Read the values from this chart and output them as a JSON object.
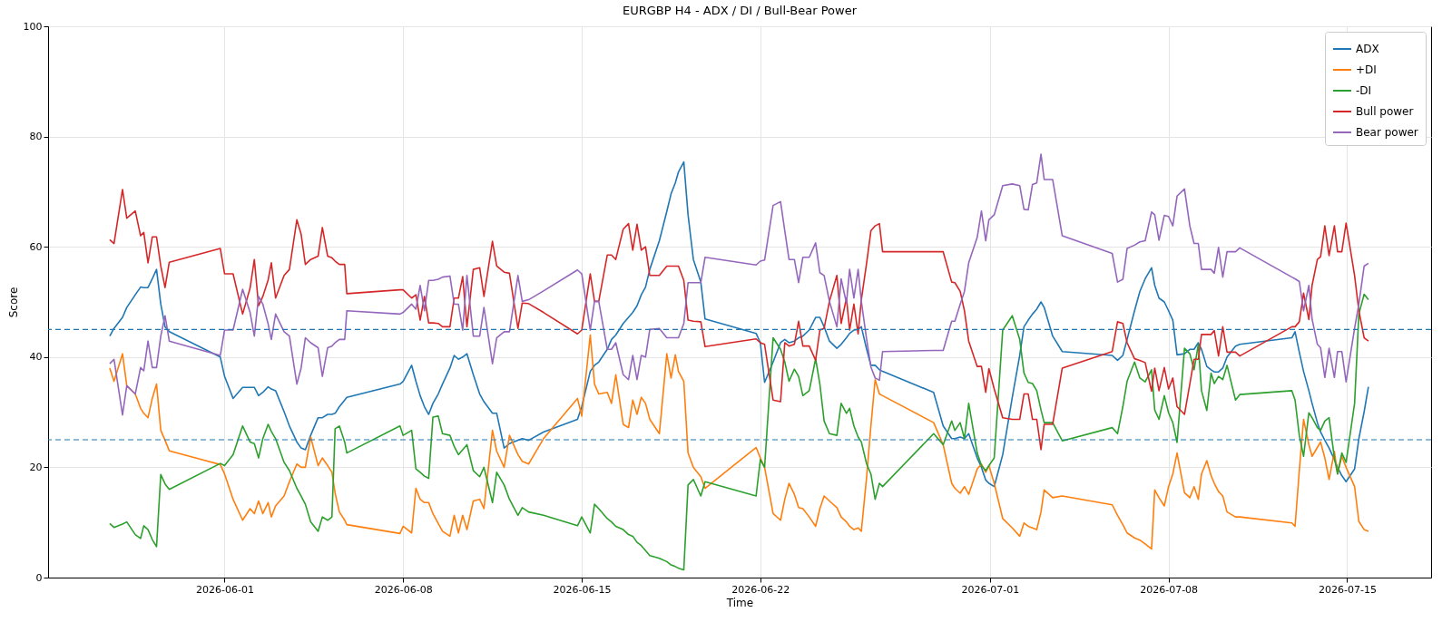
{
  "chart_data": {
    "type": "line",
    "title": "EURGBP H4 - ADX / DI / Bull-Bear Power",
    "xlabel": "Time",
    "ylabel": "Score",
    "x": [
      "2026-05-27T12:00",
      "2026-05-27T16:00",
      "2026-05-28T00:00",
      "2026-05-28T04:00",
      "2026-05-28T12:00",
      "2026-05-28T17:00",
      "2026-05-28T20:00",
      "2026-05-29T00:00",
      "2026-05-29T04:00",
      "2026-05-29T08:00",
      "2026-05-29T12:00",
      "2026-05-29T16:00",
      "2026-05-29T20:00",
      "2026-05-31T20:00",
      "2026-06-01T00:00",
      "2026-06-01T08:00",
      "2026-06-01T17:00",
      "2026-06-02T00:00",
      "2026-06-02T04:00",
      "2026-06-02T08:00",
      "2026-06-02T12:00",
      "2026-06-02T17:00",
      "2026-06-02T20:00",
      "2026-06-03T00:00",
      "2026-06-03T08:00",
      "2026-06-03T13:00",
      "2026-06-03T20:00",
      "2026-06-04T00:00",
      "2026-06-04T04:00",
      "2026-06-04T09:00",
      "2026-06-04T16:00",
      "2026-06-04T20:00",
      "2026-06-05T01:00",
      "2026-06-05T05:00",
      "2026-06-05T08:00",
      "2026-06-05T12:00",
      "2026-06-05T17:00",
      "2026-06-05T19:00",
      "2026-06-07T21:00",
      "2026-06-08T00:00",
      "2026-06-08T08:00",
      "2026-06-08T12:00",
      "2026-06-08T16:00",
      "2026-06-08T20:00",
      "2026-06-09T00:00",
      "2026-06-09T04:00",
      "2026-06-09T09:00",
      "2026-06-09T13:00",
      "2026-06-09T20:00",
      "2026-06-10T00:00",
      "2026-06-10T04:00",
      "2026-06-10T08:00",
      "2026-06-10T12:00",
      "2026-06-10T18:00",
      "2026-06-11T00:00",
      "2026-06-11T04:00",
      "2026-06-11T12:00",
      "2026-06-11T16:00",
      "2026-06-11T23:00",
      "2026-06-12T04:00",
      "2026-06-12T12:00",
      "2026-06-12T16:00",
      "2026-06-12T22:00",
      "2026-06-13T12:00",
      "2026-06-14T20:00",
      "2026-06-15T00:00",
      "2026-06-15T08:00",
      "2026-06-15T12:00",
      "2026-06-15T16:00",
      "2026-06-16T00:00",
      "2026-06-16T04:00",
      "2026-06-16T08:00",
      "2026-06-16T15:00",
      "2026-06-16T20:00",
      "2026-06-17T00:00",
      "2026-06-17T04:00",
      "2026-06-17T08:00",
      "2026-06-17T12:00",
      "2026-06-17T16:00",
      "2026-06-18T01:00",
      "2026-06-18T08:00",
      "2026-06-18T12:00",
      "2026-06-18T16:00",
      "2026-06-18T19:00",
      "2026-06-19T00:00",
      "2026-06-19T04:00",
      "2026-06-19T09:00",
      "2026-06-19T16:00",
      "2026-06-19T20:00",
      "2026-06-21T20:00",
      "2026-06-22T00:00",
      "2026-06-22T04:00",
      "2026-06-22T12:00",
      "2026-06-22T19:00",
      "2026-06-22T23:00",
      "2026-06-23T03:00",
      "2026-06-23T08:00",
      "2026-06-23T12:00",
      "2026-06-23T16:00",
      "2026-06-23T22:00",
      "2026-06-24T04:00",
      "2026-06-24T08:00",
      "2026-06-24T12:00",
      "2026-06-24T17:00",
      "2026-06-25T00:00",
      "2026-06-25T04:00",
      "2026-06-25T09:00",
      "2026-06-25T12:00",
      "2026-06-25T16:00",
      "2026-06-25T20:00",
      "2026-06-25T23:00",
      "2026-06-26T04:00",
      "2026-06-26T08:00",
      "2026-06-26T12:00",
      "2026-06-26T16:00",
      "2026-06-26T19:00",
      "2026-06-28T19:00",
      "2026-06-29T04:00",
      "2026-06-29T12:00",
      "2026-06-29T15:00",
      "2026-06-29T20:00",
      "2026-06-30T00:00",
      "2026-06-30T04:00",
      "2026-06-30T12:00",
      "2026-06-30T16:00",
      "2026-06-30T20:00",
      "2026-06-30T23:00",
      "2026-07-01T04:00",
      "2026-07-01T12:00",
      "2026-07-01T21:00",
      "2026-07-02T04:00",
      "2026-07-02T08:00",
      "2026-07-02T12:00",
      "2026-07-02T16:00",
      "2026-07-02T20:00",
      "2026-07-03T00:00",
      "2026-07-03T03:00",
      "2026-07-03T11:00",
      "2026-07-03T20:00",
      "2026-07-05T19:00",
      "2026-07-06T00:00",
      "2026-07-06T05:00",
      "2026-07-06T09:00",
      "2026-07-06T16:00",
      "2026-07-06T21:00",
      "2026-07-07T02:00",
      "2026-07-07T08:00",
      "2026-07-07T11:00",
      "2026-07-07T15:00",
      "2026-07-07T20:00",
      "2026-07-08T00:00",
      "2026-07-08T04:00",
      "2026-07-08T08:00",
      "2026-07-08T15:00",
      "2026-07-08T20:00",
      "2026-07-09T00:00",
      "2026-07-09T04:00",
      "2026-07-09T07:00",
      "2026-07-09T12:00",
      "2026-07-09T16:00",
      "2026-07-09T19:00",
      "2026-07-09T23:00",
      "2026-07-10T03:00",
      "2026-07-10T07:00",
      "2026-07-10T15:00",
      "2026-07-10T19:00",
      "2026-07-12T20:00",
      "2026-07-12T23:00",
      "2026-07-13T03:00",
      "2026-07-13T07:00",
      "2026-07-13T12:00",
      "2026-07-13T15:00",
      "2026-07-13T20:00",
      "2026-07-13T23:00",
      "2026-07-14T03:00",
      "2026-07-14T07:00",
      "2026-07-14T12:00",
      "2026-07-14T15:00",
      "2026-07-14T19:00",
      "2026-07-14T23:00",
      "2026-07-15T07:00",
      "2026-07-15T11:00",
      "2026-07-15T16:00",
      "2026-07-15T20:00"
    ],
    "series": [
      {
        "name": "ADX",
        "color": "#1f77b4",
        "values": [
          43.8,
          45.2,
          47.2,
          49.0,
          51.3,
          52.7,
          52.6,
          52.6,
          54.2,
          55.9,
          49.6,
          45.5,
          44.6,
          40.0,
          36.5,
          32.5,
          34.5,
          34.5,
          34.5,
          33.0,
          33.6,
          34.6,
          34.2,
          33.9,
          30.1,
          27.5,
          24.6,
          23.5,
          23.2,
          25.8,
          29.0,
          29.0,
          29.6,
          29.6,
          29.8,
          31.0,
          32.2,
          32.7,
          35.1,
          35.6,
          38.5,
          35.6,
          33.0,
          31.0,
          29.6,
          31.6,
          33.3,
          35.1,
          38.0,
          40.3,
          39.6,
          40.0,
          40.6,
          36.8,
          33.3,
          31.9,
          29.8,
          29.8,
          23.5,
          24.3,
          24.9,
          25.2,
          24.9,
          26.4,
          28.7,
          31.0,
          37.4,
          38.5,
          39.1,
          41.4,
          43.2,
          44.0,
          46.1,
          47.2,
          48.1,
          49.3,
          51.3,
          52.7,
          55.9,
          61.1,
          66.4,
          69.6,
          71.6,
          73.6,
          75.4,
          65.8,
          57.7,
          53.6,
          46.9,
          44.3,
          42.6,
          35.4,
          39.1,
          42.6,
          43.2,
          42.6,
          42.9,
          43.5,
          43.8,
          44.9,
          47.2,
          47.2,
          45.5,
          42.9,
          41.6,
          42.3,
          43.5,
          44.3,
          44.9,
          45.0,
          45.5,
          41.4,
          38.5,
          38.5,
          37.7,
          37.4,
          33.6,
          27.5,
          25.2,
          25.2,
          25.5,
          25.2,
          26.1,
          21.7,
          20.0,
          17.7,
          17.1,
          16.5,
          22.3,
          32.7,
          40.3,
          45.5,
          46.7,
          47.8,
          48.7,
          50.0,
          49.0,
          43.8,
          41.0,
          40.3,
          39.4,
          40.3,
          43.2,
          48.4,
          51.9,
          54.2,
          56.2,
          53.0,
          50.7,
          50.0,
          48.4,
          46.7,
          40.4,
          40.6,
          41.4,
          41.4,
          42.6,
          41.4,
          38.3,
          37.7,
          37.3,
          37.3,
          38.0,
          40.0,
          42.0,
          42.3,
          43.5,
          44.6,
          40.9,
          37.4,
          33.9,
          31.6,
          28.1,
          26.4,
          24.9,
          23.5,
          21.4,
          20.0,
          18.5,
          17.4,
          19.7,
          25.2,
          30.1,
          34.6
        ]
      },
      {
        "name": "+DI",
        "color": "#ff7f0e",
        "values": [
          38.0,
          35.6,
          40.6,
          34.8,
          33.3,
          30.7,
          29.8,
          29.0,
          32.5,
          35.1,
          26.7,
          24.9,
          23.0,
          20.5,
          18.8,
          14.2,
          10.4,
          12.5,
          11.6,
          13.9,
          11.6,
          13.6,
          11.0,
          13.0,
          14.8,
          17.4,
          20.6,
          20.0,
          20.0,
          25.5,
          20.3,
          21.7,
          20.3,
          19.1,
          15.3,
          11.9,
          10.4,
          9.6,
          8.0,
          9.3,
          8.1,
          16.2,
          14.2,
          13.6,
          13.6,
          11.6,
          9.8,
          8.4,
          7.5,
          11.3,
          8.1,
          11.3,
          8.7,
          13.9,
          14.2,
          12.5,
          26.7,
          22.9,
          20.0,
          25.8,
          22.3,
          21.1,
          20.6,
          25.2,
          32.5,
          29.3,
          44.0,
          35.1,
          33.3,
          33.6,
          31.6,
          36.8,
          27.8,
          27.2,
          32.2,
          29.6,
          32.7,
          31.6,
          28.7,
          26.1,
          40.6,
          36.2,
          40.4,
          37.4,
          35.6,
          22.6,
          20.0,
          18.3,
          16.2,
          23.6,
          21.7,
          20.0,
          11.6,
          10.4,
          14.2,
          17.1,
          15.1,
          12.7,
          12.5,
          11.0,
          9.3,
          12.5,
          14.8,
          13.9,
          12.7,
          11.0,
          10.1,
          9.3,
          8.7,
          9.0,
          8.4,
          18.3,
          27.5,
          35.9,
          33.3,
          33.0,
          28.1,
          24.1,
          17.1,
          16.2,
          15.3,
          16.5,
          15.1,
          19.7,
          20.6,
          19.1,
          20.3,
          17.1,
          10.7,
          9.0,
          7.5,
          9.9,
          9.3,
          9.0,
          8.7,
          11.9,
          15.9,
          14.5,
          14.8,
          13.2,
          11.3,
          9.6,
          8.1,
          7.2,
          6.8,
          6.1,
          5.2,
          15.9,
          14.5,
          13.0,
          16.5,
          18.8,
          22.6,
          15.4,
          14.5,
          16.5,
          14.2,
          18.8,
          21.2,
          18.5,
          17.1,
          15.6,
          14.8,
          11.9,
          11.0,
          11.0,
          9.9,
          9.3,
          19.4,
          28.7,
          24.1,
          22.0,
          23.6,
          24.6,
          21.7,
          17.8,
          22.9,
          18.8,
          22.0,
          20.0,
          16.5,
          10.2,
          8.7,
          8.4
        ]
      },
      {
        "name": "-DI",
        "color": "#2ca02c",
        "values": [
          9.8,
          9.1,
          9.7,
          10.1,
          7.8,
          7.1,
          9.4,
          8.7,
          6.9,
          5.6,
          18.7,
          17.0,
          16.0,
          20.7,
          20.3,
          22.3,
          27.5,
          24.6,
          24.3,
          21.7,
          25.2,
          27.8,
          26.5,
          25.2,
          20.9,
          19.4,
          16.2,
          14.8,
          13.3,
          10.1,
          8.4,
          11.0,
          10.4,
          11.0,
          27.0,
          27.5,
          24.6,
          22.6,
          27.5,
          25.8,
          26.7,
          19.7,
          19.1,
          18.4,
          18.0,
          29.1,
          29.3,
          26.1,
          25.8,
          23.8,
          22.3,
          23.2,
          24.1,
          19.4,
          18.3,
          20.0,
          13.6,
          19.1,
          16.8,
          14.2,
          11.3,
          12.7,
          11.9,
          11.3,
          9.4,
          11.0,
          8.1,
          13.3,
          12.5,
          10.7,
          10.1,
          9.3,
          8.7,
          7.8,
          7.5,
          6.4,
          5.8,
          4.9,
          4.0,
          3.5,
          2.9,
          2.3,
          2.0,
          1.7,
          1.4,
          16.8,
          17.8,
          14.8,
          17.4,
          14.8,
          21.4,
          20.0,
          43.5,
          41.4,
          39.1,
          35.6,
          37.8,
          36.5,
          33.0,
          33.9,
          39.7,
          35.1,
          28.4,
          26.1,
          25.8,
          31.6,
          29.8,
          30.7,
          27.5,
          25.5,
          24.6,
          20.6,
          18.8,
          14.2,
          17.1,
          16.5,
          26.1,
          24.1,
          28.4,
          26.7,
          28.1,
          25.2,
          31.6,
          22.6,
          20.3,
          19.4,
          20.3,
          21.7,
          44.9,
          47.5,
          43.2,
          37.1,
          35.4,
          35.2,
          33.9,
          30.4,
          28.1,
          28.1,
          24.8,
          27.2,
          26.1,
          31.0,
          35.6,
          39.1,
          36.2,
          35.5,
          37.7,
          30.4,
          28.7,
          33.0,
          29.9,
          28.1,
          24.5,
          41.6,
          40.6,
          37.7,
          42.3,
          33.9,
          30.3,
          37.1,
          35.2,
          36.5,
          35.9,
          38.5,
          32.2,
          33.2,
          33.9,
          32.2,
          25.8,
          22.0,
          29.9,
          29.0,
          27.2,
          26.7,
          28.4,
          29.0,
          21.7,
          18.8,
          22.6,
          20.9,
          31.6,
          47.8,
          51.4,
          50.4
        ]
      },
      {
        "name": "Bull power",
        "color": "#d62728",
        "values": [
          61.3,
          60.6,
          70.4,
          65.2,
          66.5,
          62.0,
          62.6,
          57.1,
          61.8,
          61.8,
          56.5,
          52.6,
          57.2,
          59.7,
          55.1,
          55.1,
          47.8,
          52.5,
          57.7,
          49.3,
          51.0,
          54.0,
          57.1,
          50.7,
          54.8,
          55.9,
          64.9,
          62.3,
          56.8,
          57.7,
          58.3,
          63.5,
          58.3,
          58.0,
          57.4,
          56.8,
          56.8,
          51.5,
          52.2,
          52.2,
          50.7,
          51.3,
          46.7,
          51.0,
          46.2,
          46.2,
          46.1,
          45.5,
          45.5,
          50.7,
          50.7,
          54.6,
          45.5,
          55.9,
          56.2,
          51.0,
          61.0,
          56.5,
          55.4,
          55.2,
          45.2,
          49.8,
          49.7,
          48.1,
          44.2,
          44.9,
          55.1,
          50.1,
          50.1,
          58.5,
          58.5,
          57.7,
          63.2,
          64.2,
          59.4,
          64.1,
          59.4,
          60.0,
          54.8,
          54.8,
          56.5,
          56.5,
          56.5,
          56.5,
          53.9,
          46.7,
          46.5,
          46.4,
          41.9,
          43.3,
          42.6,
          42.3,
          32.2,
          31.9,
          42.6,
          42.0,
          42.3,
          46.5,
          42.0,
          42.0,
          39.4,
          44.9,
          45.2,
          50.1,
          54.8,
          46.1,
          50.7,
          44.9,
          49.6,
          44.2,
          50.4,
          57.1,
          62.9,
          63.8,
          64.2,
          59.1,
          59.1,
          59.1,
          53.6,
          53.5,
          51.9,
          48.4,
          42.9,
          38.3,
          38.3,
          33.6,
          37.9,
          34.2,
          29.0,
          28.7,
          28.7,
          33.3,
          33.3,
          28.7,
          28.7,
          23.2,
          27.8,
          27.8,
          38.0,
          41.0,
          46.4,
          46.1,
          42.6,
          39.7,
          39.4,
          39.0,
          33.8,
          38.0,
          33.9,
          38.1,
          34.2,
          36.2,
          31.0,
          29.6,
          35.1,
          39.6,
          39.6,
          44.1,
          44.1,
          44.1,
          44.8,
          40.2,
          45.5,
          40.9,
          40.9,
          40.2,
          45.5,
          45.5,
          46.4,
          51.6,
          46.8,
          53.0,
          57.7,
          58.2,
          63.8,
          58.4,
          63.8,
          59.1,
          59.1,
          64.3,
          54.8,
          48.4,
          43.5,
          42.9
        ]
      },
      {
        "name": "Bear power",
        "color": "#9467bd",
        "values": [
          38.8,
          39.6,
          29.5,
          34.8,
          33.3,
          38.1,
          37.5,
          42.9,
          38.1,
          38.1,
          43.8,
          47.5,
          42.9,
          40.3,
          44.9,
          44.9,
          52.3,
          48.1,
          43.8,
          51.0,
          49.6,
          46.0,
          43.2,
          47.8,
          44.6,
          43.8,
          35.1,
          38.0,
          43.5,
          42.6,
          41.7,
          36.5,
          41.7,
          42.0,
          42.6,
          43.2,
          43.2,
          48.4,
          47.8,
          48.1,
          49.6,
          48.7,
          53.0,
          48.4,
          53.9,
          53.9,
          54.1,
          54.5,
          54.7,
          49.6,
          49.6,
          44.9,
          54.8,
          43.8,
          43.8,
          49.0,
          38.8,
          43.5,
          44.6,
          44.6,
          54.8,
          50.1,
          50.4,
          52.0,
          55.8,
          55.1,
          44.9,
          50.1,
          50.1,
          41.4,
          41.4,
          42.6,
          36.8,
          35.9,
          40.3,
          35.9,
          40.3,
          40.0,
          45.0,
          45.2,
          43.5,
          43.5,
          43.5,
          43.5,
          46.1,
          53.5,
          53.5,
          53.5,
          58.1,
          56.7,
          57.4,
          57.6,
          67.5,
          68.2,
          62.9,
          57.7,
          57.7,
          53.5,
          58.1,
          58.1,
          60.7,
          55.3,
          54.8,
          50.1,
          45.5,
          54.2,
          49.8,
          55.9,
          50.7,
          55.9,
          50.1,
          43.2,
          38.2,
          36.2,
          35.8,
          41.0,
          41.2,
          41.2,
          46.5,
          46.5,
          49.6,
          51.9,
          57.1,
          61.7,
          66.5,
          61.1,
          64.9,
          65.8,
          71.1,
          71.4,
          71.1,
          66.8,
          66.7,
          71.3,
          71.6,
          76.8,
          72.2,
          72.2,
          62.0,
          58.8,
          53.6,
          54.1,
          59.7,
          60.3,
          60.9,
          61.1,
          66.3,
          65.8,
          61.2,
          65.7,
          65.5,
          63.8,
          69.2,
          70.5,
          63.8,
          60.6,
          60.6,
          55.9,
          55.9,
          55.9,
          55.2,
          59.9,
          54.5,
          59.1,
          59.1,
          59.8,
          54.5,
          54.2,
          53.7,
          48.4,
          53.0,
          46.9,
          42.3,
          41.7,
          36.3,
          41.6,
          36.3,
          41.0,
          41.0,
          35.5,
          45.2,
          49.6,
          56.5,
          57.0
        ]
      }
    ],
    "xlim": [
      "2026-05-25T02:00",
      "2026-07-18T07:00"
    ],
    "xticks": [
      "2026-06-01",
      "2026-06-08",
      "2026-06-15",
      "2026-06-22",
      "2026-07-01",
      "2026-07-08",
      "2026-07-15"
    ],
    "ylim": [
      0,
      100
    ],
    "yticks": [
      0,
      20,
      40,
      60,
      80,
      100
    ],
    "ref_lines": [
      {
        "axis": "y",
        "value": 45,
        "color": "#1f77b4",
        "line_style": "dashed"
      },
      {
        "axis": "y",
        "value": 25,
        "color": "#1f77b4",
        "line_style": "dashed"
      }
    ],
    "grid": true,
    "legend": "top right",
    "line_style": "solid"
  }
}
